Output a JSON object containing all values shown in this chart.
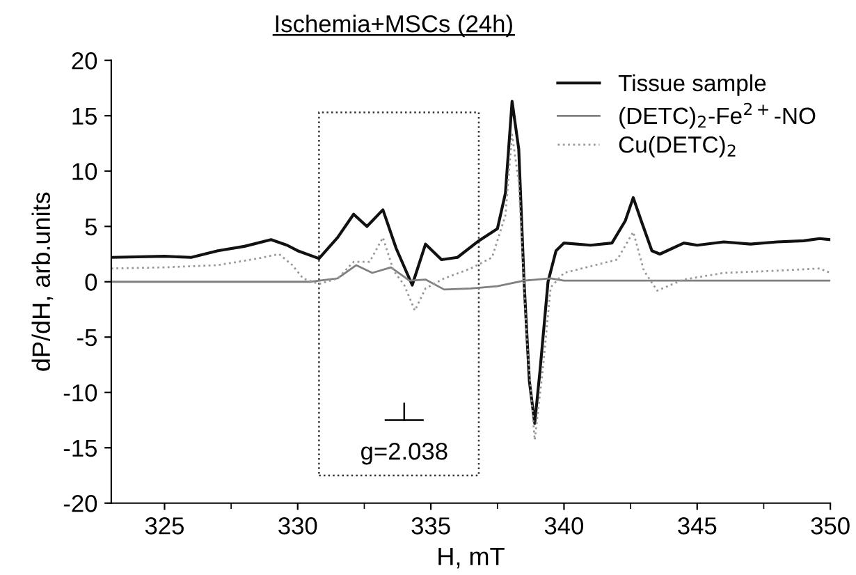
{
  "chart_data": {
    "type": "line",
    "title": "Ischemia+MSCs (24h)",
    "xlabel": "H, mT",
    "ylabel": "dP/dH, arb.units",
    "xlim": [
      323,
      350
    ],
    "xticks": [
      325,
      330,
      335,
      340,
      345,
      350
    ],
    "ylim": [
      -20,
      20
    ],
    "yticks": [
      -20,
      -15,
      -10,
      -5,
      0,
      5,
      10,
      15,
      20
    ],
    "legend": "top right",
    "grid": false,
    "annotations": [
      "g=2.038"
    ],
    "series": [
      {
        "name": "Tissue sample",
        "color": "#111111",
        "line_style": "solid",
        "x": [
          323,
          325,
          326,
          327,
          328,
          329,
          329.6,
          330,
          330.8,
          331.5,
          332.1,
          332.6,
          333.2,
          333.7,
          334.3,
          334.8,
          335.4,
          336,
          336.8,
          337.5,
          337.8,
          338.05,
          338.3,
          338.5,
          338.7,
          338.9,
          339.1,
          339.4,
          339.7,
          340,
          341,
          341.8,
          342.3,
          342.6,
          342.9,
          343.3,
          343.6,
          344.5,
          345,
          346,
          347,
          348,
          349,
          349.6,
          350
        ],
        "values": [
          2.2,
          2.3,
          2.2,
          2.8,
          3.2,
          3.8,
          3.3,
          2.8,
          2.1,
          4.0,
          6.1,
          5.0,
          6.5,
          3.0,
          -0.3,
          3.4,
          2.0,
          2.2,
          3.7,
          4.8,
          8.0,
          16.3,
          12.0,
          0.0,
          -9.0,
          -12.8,
          -8.0,
          0.0,
          2.8,
          3.5,
          3.3,
          3.5,
          5.5,
          7.6,
          5.5,
          2.8,
          2.5,
          3.5,
          3.3,
          3.6,
          3.4,
          3.6,
          3.7,
          3.9,
          3.8
        ]
      },
      {
        "name": "(DETC)$_{2}$-Fe$^{2+}$-NO",
        "color": "#808080",
        "line_style": "solid",
        "x": [
          323,
          330.5,
          331.5,
          332.2,
          332.8,
          333.5,
          334.2,
          334.8,
          335.5,
          336.5,
          337.5,
          338.5,
          339.5,
          340,
          350
        ],
        "values": [
          0.0,
          0.0,
          0.3,
          1.5,
          0.8,
          1.3,
          0.1,
          0.2,
          -0.7,
          -0.6,
          -0.4,
          0.1,
          0.3,
          0.1,
          0.1
        ]
      },
      {
        "name": "Cu(DETC)$_{2}$",
        "color": "#999999",
        "line_style": "dotted",
        "x": [
          323,
          325,
          327,
          328.5,
          329.3,
          329.8,
          330.2,
          330.8,
          331.5,
          332.1,
          332.7,
          333.2,
          333.6,
          334.0,
          334.4,
          334.8,
          335.5,
          336.5,
          337.3,
          337.8,
          338.05,
          338.3,
          338.6,
          338.9,
          339.2,
          339.5,
          340,
          341,
          342,
          342.6,
          343,
          343.5,
          344.5,
          346,
          348,
          349.6,
          350
        ],
        "values": [
          1.2,
          1.3,
          1.5,
          2.1,
          2.5,
          1.5,
          0.3,
          -0.2,
          0.3,
          1.8,
          1.8,
          4.0,
          1.0,
          -0.3,
          -2.6,
          -0.6,
          0.3,
          1.2,
          2.2,
          6.0,
          13.3,
          9.0,
          -5.0,
          -14.3,
          -8.0,
          -0.5,
          0.8,
          1.4,
          2.0,
          4.5,
          1.0,
          -0.8,
          0.2,
          0.8,
          1.0,
          1.2,
          0.8
        ]
      }
    ]
  }
}
